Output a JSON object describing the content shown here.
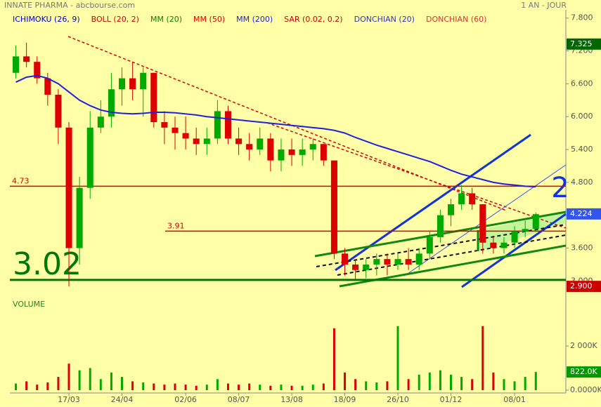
{
  "chart_data": {
    "type": "candlestick",
    "title": "INNATE PHARMA - abcbourse.com",
    "period": "1 AN - JOUR",
    "annotation": "2",
    "volume_label": "VOLUME",
    "indicators": [
      {
        "name": "ICHIMOKU (26, 9)",
        "color": "#0000cc"
      },
      {
        "name": "BOLL (20, 2)",
        "color": "#cc0000"
      },
      {
        "name": "MM (20)",
        "color": "#008800"
      },
      {
        "name": "MM (50)",
        "color": "#dd0000"
      },
      {
        "name": "MM (200)",
        "color": "#2020dd",
        "values": [
          6.63,
          6.72,
          6.75,
          6.7,
          6.6,
          6.45,
          6.3,
          6.2,
          6.12,
          6.08,
          6.06,
          6.05,
          6.06,
          6.08,
          6.08,
          6.07,
          6.05,
          6.03,
          6.0,
          5.98,
          5.96,
          5.94,
          5.92,
          5.9,
          5.88,
          5.86,
          5.84,
          5.82,
          5.8,
          5.78,
          5.75,
          5.7,
          5.62,
          5.55,
          5.48,
          5.42,
          5.36,
          5.3,
          5.24,
          5.18,
          5.1,
          5.02,
          4.95,
          4.9,
          4.85,
          4.8,
          4.77,
          4.75,
          4.73,
          4.72
        ]
      },
      {
        "name": "SAR (0.02, 0.2)",
        "color": "#cc0000"
      },
      {
        "name": "DONCHIAN (20)",
        "color": "#3333bb"
      },
      {
        "name": "DONCHIAN (60)",
        "color": "#dd3333"
      }
    ],
    "categories": [
      null,
      null,
      null,
      null,
      null,
      "17/03",
      null,
      null,
      null,
      null,
      "24/04",
      null,
      null,
      null,
      null,
      null,
      "02/06",
      null,
      null,
      null,
      null,
      "08/07",
      null,
      null,
      null,
      null,
      "13/08",
      null,
      null,
      null,
      null,
      "18/09",
      null,
      null,
      null,
      null,
      "26/10",
      null,
      null,
      null,
      null,
      "01/12",
      null,
      null,
      null,
      null,
      null,
      "08/01",
      null,
      null
    ],
    "open": [
      6.8,
      7.1,
      7.0,
      6.7,
      6.4,
      5.8,
      3.6,
      4.7,
      5.8,
      6.0,
      6.5,
      6.7,
      6.5,
      6.8,
      5.9,
      5.8,
      5.7,
      5.6,
      5.5,
      5.6,
      6.1,
      5.6,
      5.5,
      5.4,
      5.6,
      5.2,
      5.4,
      5.3,
      5.4,
      5.5,
      5.2,
      3.5,
      3.3,
      3.2,
      3.3,
      3.4,
      3.3,
      3.4,
      3.3,
      3.5,
      3.8,
      4.2,
      4.4,
      4.6,
      4.4,
      3.7,
      3.6,
      3.7,
      3.9,
      3.95
    ],
    "high": [
      7.3,
      7.35,
      7.1,
      6.8,
      6.5,
      5.9,
      4.9,
      6.1,
      6.3,
      6.8,
      6.9,
      7.0,
      6.9,
      6.8,
      6.1,
      6.0,
      6.0,
      5.8,
      5.8,
      6.3,
      6.2,
      5.8,
      5.7,
      5.8,
      5.7,
      5.6,
      5.6,
      5.6,
      5.6,
      5.5,
      5.2,
      3.6,
      3.4,
      3.4,
      3.5,
      3.5,
      3.5,
      3.6,
      3.6,
      3.9,
      4.3,
      4.5,
      4.75,
      4.7,
      4.4,
      3.8,
      3.8,
      4.0,
      4.1,
      4.25
    ],
    "low": [
      6.7,
      6.9,
      6.6,
      6.2,
      5.5,
      2.9,
      3.3,
      4.5,
      5.7,
      5.8,
      6.2,
      6.3,
      6.0,
      5.8,
      5.5,
      5.4,
      5.4,
      5.3,
      5.3,
      5.5,
      5.5,
      5.3,
      5.2,
      5.3,
      5.0,
      5.0,
      5.1,
      5.1,
      5.2,
      5.1,
      3.4,
      3.1,
      3.0,
      3.05,
      3.1,
      3.1,
      3.2,
      3.2,
      3.2,
      3.4,
      3.7,
      4.0,
      4.3,
      4.3,
      3.5,
      3.5,
      3.5,
      3.6,
      3.8,
      3.9
    ],
    "close": [
      7.1,
      7.0,
      6.7,
      6.4,
      5.8,
      3.6,
      4.7,
      5.8,
      6.0,
      6.5,
      6.7,
      6.5,
      6.8,
      5.9,
      5.8,
      5.7,
      5.6,
      5.5,
      5.6,
      6.1,
      5.6,
      5.5,
      5.4,
      5.6,
      5.2,
      5.4,
      5.3,
      5.4,
      5.5,
      5.2,
      3.5,
      3.3,
      3.2,
      3.3,
      3.4,
      3.3,
      3.4,
      3.3,
      3.5,
      3.8,
      4.2,
      4.4,
      4.6,
      4.4,
      3.7,
      3.6,
      3.7,
      3.9,
      3.95,
      4.22
    ],
    "volume": [
      300000,
      400000,
      250000,
      350000,
      600000,
      1200000,
      900000,
      1000000,
      500000,
      800000,
      600000,
      400000,
      350000,
      300000,
      250000,
      300000,
      250000,
      200000,
      250000,
      500000,
      300000,
      250000,
      300000,
      250000,
      200000,
      250000,
      200000,
      200000,
      250000,
      300000,
      2800000,
      800000,
      500000,
      400000,
      350000,
      400000,
      2900000,
      500000,
      700000,
      800000,
      900000,
      700000,
      600000,
      500000,
      2900000,
      800000,
      500000,
      400000,
      600000,
      822000
    ],
    "up_color": "#00aa00",
    "down_color": "#dd0000",
    "ylim": [
      2.8,
      7.95
    ],
    "yticks": [
      {
        "value": 7.8,
        "label": "7.800"
      },
      {
        "value": 7.2,
        "label": "7.200"
      },
      {
        "value": 6.6,
        "label": "6.600"
      },
      {
        "value": 6.0,
        "label": "6.000"
      },
      {
        "value": 5.4,
        "label": "5.400"
      },
      {
        "value": 4.8,
        "label": "4.800"
      },
      {
        "value": 3.6,
        "label": "3.600"
      },
      {
        "value": 3.0,
        "label": "3.000"
      }
    ],
    "vlim": [
      0,
      4160000
    ],
    "vticks": [
      {
        "value": 2000000,
        "label": "2 000K"
      },
      {
        "value": 0,
        "label": "0.0000K"
      }
    ],
    "hlines": [
      {
        "value": 4.73,
        "color": "#dd0000"
      },
      {
        "value": 3.91,
        "color": "#dd0000"
      },
      {
        "value": 3.02,
        "color": "#007700"
      }
    ],
    "price_tags": [
      {
        "value": 7.325,
        "color": "#006600",
        "pane": "price"
      },
      {
        "value": 4.224,
        "color": "#3355ee",
        "pane": "price"
      },
      {
        "value": {
          "value": 2.9,
          "label": "2.900"
        },
        "color": "#cc0000",
        "pane": "price"
      },
      {
        "value": {
          "value": 822000,
          "label": "822.0K"
        },
        "color": "#009900",
        "pane": "volume"
      }
    ]
  }
}
